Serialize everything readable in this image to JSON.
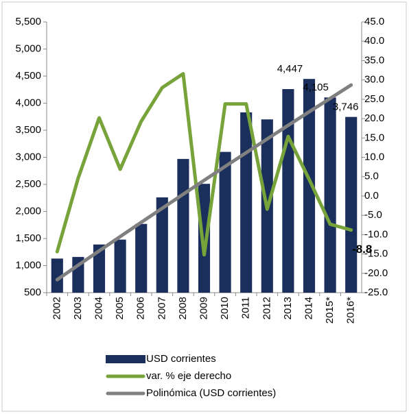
{
  "chart_data": {
    "type": "bar",
    "categories": [
      "2002",
      "2003",
      "2004",
      "2005",
      "2006",
      "2007",
      "2008",
      "2009",
      "2010",
      "2011",
      "2012",
      "2013",
      "2014",
      "2015*",
      "2016*"
    ],
    "series": [
      {
        "name": "USD corrientes",
        "type": "bar",
        "color": "#1b2f5c",
        "values": [
          1130,
          1160,
          1390,
          1480,
          1770,
          2260,
          2970,
          2510,
          3100,
          3830,
          3700,
          4260,
          4447,
          4105,
          3746
        ],
        "value_labels": [
          null,
          null,
          null,
          null,
          null,
          null,
          null,
          null,
          null,
          null,
          null,
          null,
          "4,447",
          "4,105",
          "3,746"
        ]
      },
      {
        "name": "var. % eje derecho",
        "type": "line",
        "axis": "y2",
        "color": "#77a33a",
        "values": [
          -14.4,
          4.6,
          20.2,
          6.9,
          19.3,
          28,
          31.6,
          -15.2,
          23.8,
          23.8,
          -3.4,
          15.4,
          4.3,
          -7.3,
          -8.8
        ],
        "value_labels": [
          null,
          null,
          null,
          null,
          null,
          null,
          null,
          null,
          null,
          null,
          null,
          null,
          null,
          null,
          "-8.8"
        ]
      },
      {
        "name": "Polinómica (USD corrientes)",
        "type": "line",
        "color": "#808080",
        "values": [
          740,
          1007,
          1272,
          1536,
          1798,
          2058,
          2317,
          2575,
          2831,
          3085,
          3338,
          3590,
          3840,
          4088,
          4335
        ]
      }
    ],
    "ylim": [
      500,
      5500
    ],
    "yticks": [
      500,
      {
        "value": 1000,
        "label": "1,000"
      },
      {
        "value": 1500,
        "label": "1,500"
      },
      {
        "value": 2000,
        "label": "2,000"
      },
      {
        "value": 2500,
        "label": "2,500"
      },
      {
        "value": 3000,
        "label": "3,000"
      },
      {
        "value": 3500,
        "label": "3,500"
      },
      {
        "value": 4000,
        "label": "4,000"
      },
      {
        "value": 4500,
        "label": "4,500"
      },
      {
        "value": 5000,
        "label": "5,000"
      },
      {
        "value": 5500,
        "label": "5,500"
      }
    ],
    "y2lim": [
      -25,
      45
    ],
    "y2ticks": [
      {
        "value": -25,
        "label": "-25.0"
      },
      {
        "value": -20,
        "label": "-20.0"
      },
      {
        "value": -15,
        "label": "-15.0"
      },
      {
        "value": -10,
        "label": "-10.0"
      },
      {
        "value": -5,
        "label": "-5.0"
      },
      {
        "value": 0,
        "label": "0.0"
      },
      {
        "value": 5,
        "label": "5.0"
      },
      {
        "value": 10,
        "label": "10.0"
      },
      {
        "value": 15,
        "label": "15.0"
      },
      {
        "value": 20,
        "label": "20.0"
      },
      {
        "value": 25,
        "label": "25.0"
      },
      {
        "value": 30,
        "label": "30.0"
      },
      {
        "value": 35,
        "label": "35.0"
      },
      {
        "value": 40,
        "label": "40.0"
      },
      {
        "value": 45,
        "label": "45.0"
      }
    ],
    "legend": "bottom"
  }
}
